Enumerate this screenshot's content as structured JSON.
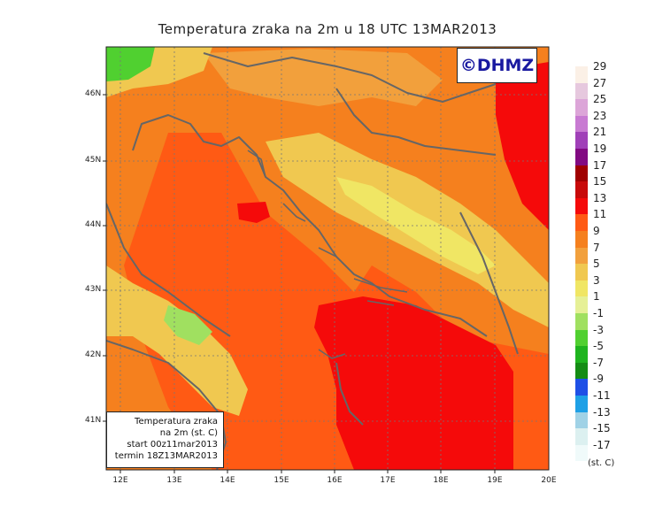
{
  "title": "Temperatura zraka na 2m u 18 UTC 13MAR2013",
  "copyright": "©DHMZ",
  "infobox": {
    "line1": "Temperatura zraka",
    "line2": "na 2m (st. C)",
    "line3": "start 00z11mar2013",
    "line4": "termin 18Z13MAR2013"
  },
  "lat_labels": [
    "46N",
    "45N",
    "44N",
    "43N",
    "42N",
    "41N"
  ],
  "lon_labels": [
    "12E",
    "13E",
    "14E",
    "15E",
    "16E",
    "17E",
    "18E",
    "19E",
    "20E"
  ],
  "legend": {
    "units": "(st. C)",
    "labels": [
      "29",
      "27",
      "25",
      "23",
      "21",
      "19",
      "17",
      "15",
      "13",
      "11",
      "9",
      "7",
      "5",
      "3",
      "1",
      "-1",
      "-3",
      "-5",
      "-7",
      "-9",
      "-11",
      "-13",
      "-15",
      "-17"
    ],
    "colors": [
      "#fbf0e6",
      "#e6c8de",
      "#dca5d8",
      "#c87ad2",
      "#a040b8",
      "#820a82",
      "#a00000",
      "#c80a0a",
      "#f50a0a",
      "#ff5a14",
      "#f5801e",
      "#f2a03c",
      "#f0c850",
      "#f0e664",
      "#e6f096",
      "#a0e060",
      "#50d030",
      "#1eb41e",
      "#148c14",
      "#1e50e6",
      "#1ea0e6",
      "#a0d2e6",
      "#dcf0f0",
      "#f0fafa"
    ]
  }
}
